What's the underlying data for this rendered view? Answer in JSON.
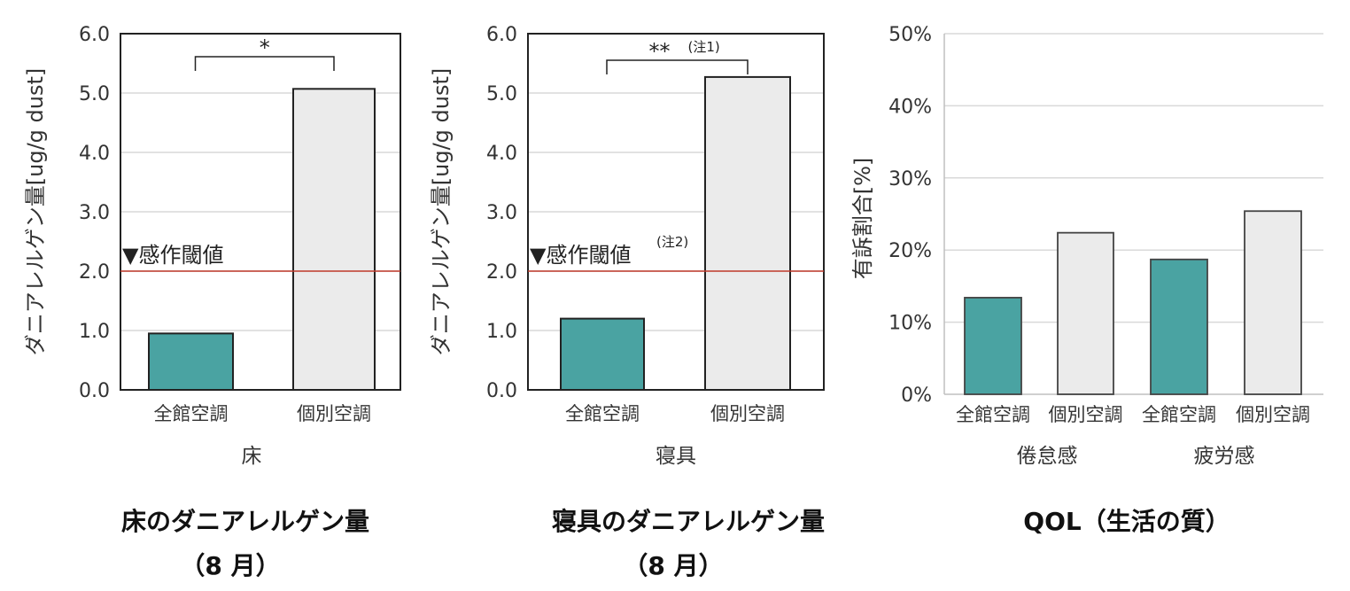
{
  "colors": {
    "centralized": "#4aa3a2",
    "individual": "#ebebeb",
    "threshold": "#c0392b",
    "outline": "#222222",
    "grid": "#d9d9d9"
  },
  "chart_data": [
    {
      "type": "bar",
      "ylabel": "ダニアレルゲン量[ug/g dust]",
      "ylim": [
        0,
        6
      ],
      "yticks": [
        "0.0",
        "1.0",
        "2.0",
        "3.0",
        "4.0",
        "5.0",
        "6.0"
      ],
      "categories": [
        "全館空調",
        "個別空調"
      ],
      "values": [
        0.95,
        5.07
      ],
      "xgroup": "床",
      "threshold": {
        "value": 2.0,
        "label": "▼感作閾値",
        "note": ""
      },
      "significance": {
        "label": "*",
        "note": ""
      },
      "caption": [
        "床のダニアレルゲン量",
        "（8 月）"
      ]
    },
    {
      "type": "bar",
      "ylabel": "ダニアレルゲン量[ug/g dust]",
      "ylim": [
        0,
        6
      ],
      "yticks": [
        "0.0",
        "1.0",
        "2.0",
        "3.0",
        "4.0",
        "5.0",
        "6.0"
      ],
      "categories": [
        "全館空調",
        "個別空調"
      ],
      "values": [
        1.2,
        5.27
      ],
      "xgroup": "寝具",
      "threshold": {
        "value": 2.0,
        "label": "▼感作閾値",
        "note": "(注2)"
      },
      "significance": {
        "label": "**",
        "note": "(注1)"
      },
      "caption": [
        "寝具のダニアレルゲン量",
        "（8 月）"
      ]
    },
    {
      "type": "bar",
      "ylabel": "有訴割合[%]",
      "ylim": [
        0,
        50
      ],
      "yticks": [
        "0%",
        "10%",
        "20%",
        "30%",
        "40%",
        "50%"
      ],
      "categories": [
        "全館空調",
        "個別空調",
        "全館空調",
        "個別空調"
      ],
      "values": [
        13.4,
        22.4,
        18.7,
        25.4
      ],
      "groups": [
        "倦怠感",
        "疲労感"
      ],
      "caption": [
        "QOL（生活の質）"
      ]
    }
  ]
}
